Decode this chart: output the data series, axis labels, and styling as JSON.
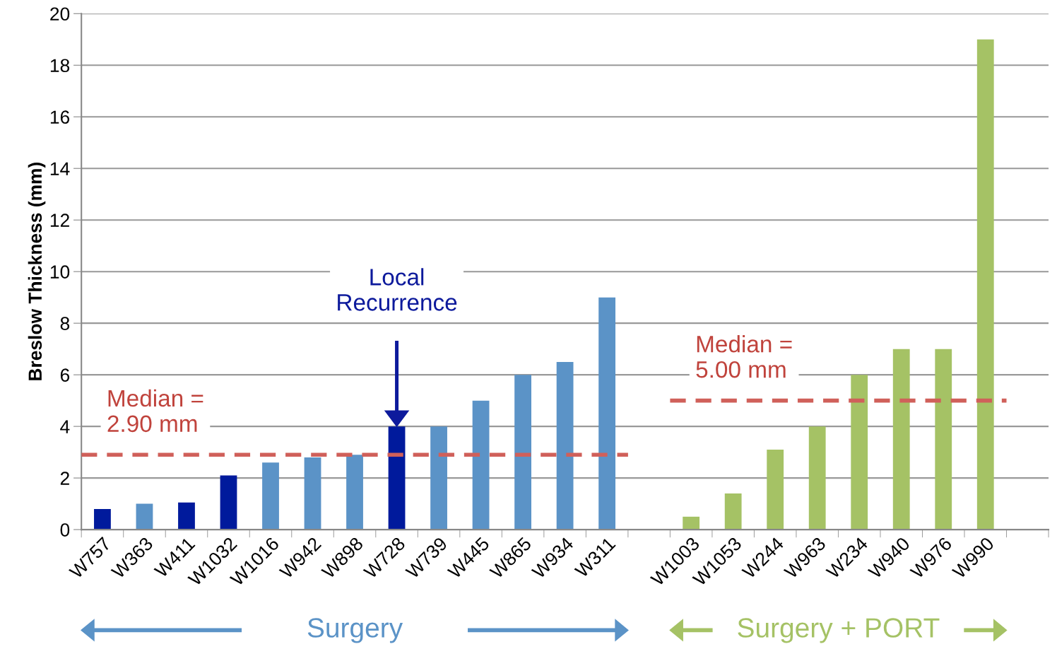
{
  "chart_data": {
    "type": "bar",
    "ylabel": "Breslow Thickness (mm)",
    "categories": [
      "W757",
      "W363",
      "W411",
      "W1032",
      "W1016",
      "W942",
      "W898",
      "W728",
      "W739",
      "W445",
      "W865",
      "W934",
      "W311",
      null,
      "W1003",
      "W1053",
      "W244",
      "W963",
      "W234",
      "W940",
      "W976",
      "W990",
      null
    ],
    "series": [
      {
        "values": [
          0.8,
          1.0,
          1.05,
          2.1,
          2.6,
          2.8,
          2.9,
          4.0,
          4.0,
          5.0,
          6.0,
          6.5,
          9.0,
          null,
          0.5,
          1.4,
          3.1,
          4.0,
          6.0,
          7.0,
          7.0,
          19.0,
          null
        ],
        "colors": [
          "#001a9c",
          "#5b93c7",
          "#001a9c",
          "#001a9c",
          "#5b93c7",
          "#5b93c7",
          "#5b93c7",
          "#001a9c",
          "#5b93c7",
          "#5b93c7",
          "#5b93c7",
          "#5b93c7",
          "#5b93c7",
          "#5b93c7",
          "#a5c265",
          "#a5c265",
          "#a5c265",
          "#a5c265",
          "#a5c265",
          "#a5c265",
          "#a5c265",
          "#a5c265",
          "#a5c265"
        ]
      }
    ],
    "ref_lines": [
      {
        "axis": "y",
        "value": 2.9,
        "label": "Median =\n2.90 mm",
        "color": "#d0605a",
        "line_style": "dashed"
      },
      {
        "axis": "y",
        "value": 5.0,
        "label": "Median =\n5.00 mm",
        "color": "#d0605a",
        "line_style": "dashed"
      }
    ],
    "ylim": [
      0,
      20
    ],
    "yticks": [
      0,
      2,
      4,
      6,
      8,
      10,
      12,
      14,
      16,
      18,
      20
    ],
    "grid": "y",
    "annotations": [
      "Local\nRecurrence",
      "Surgery",
      "Surgery + PORT"
    ]
  }
}
